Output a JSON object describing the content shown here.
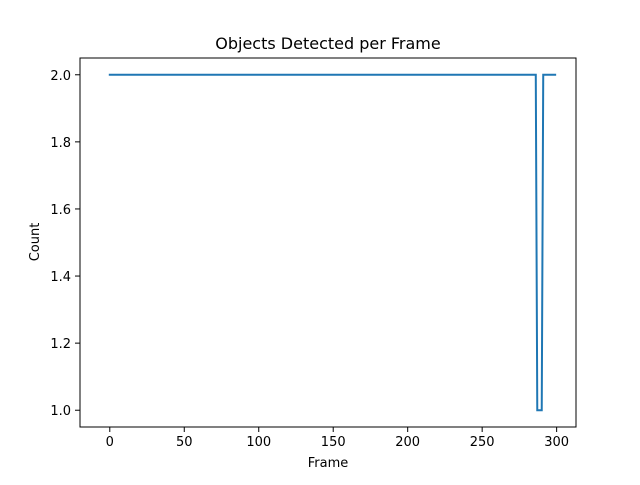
{
  "chart_data": {
    "type": "line",
    "title": "Objects Detected per Frame",
    "xlabel": "Frame",
    "ylabel": "Count",
    "xlim": [
      -20,
      313
    ],
    "ylim": [
      0.95,
      2.05
    ],
    "xticks": [
      0,
      50,
      100,
      150,
      200,
      250,
      300
    ],
    "xtick_labels": [
      "0",
      "50",
      "100",
      "150",
      "200",
      "250",
      "300"
    ],
    "yticks": [
      1.0,
      1.2,
      1.4,
      1.6,
      1.8,
      2.0
    ],
    "ytick_labels": [
      "1.0",
      "1.2",
      "1.4",
      "1.6",
      "1.8",
      "2.0"
    ],
    "grid": false,
    "legend": "none",
    "series": [
      {
        "color": "#1f77b4",
        "points": [
          [
            0,
            2
          ],
          [
            286,
            2
          ],
          [
            287,
            1
          ],
          [
            290,
            1
          ],
          [
            291,
            2
          ],
          [
            299,
            2
          ]
        ]
      }
    ]
  }
}
